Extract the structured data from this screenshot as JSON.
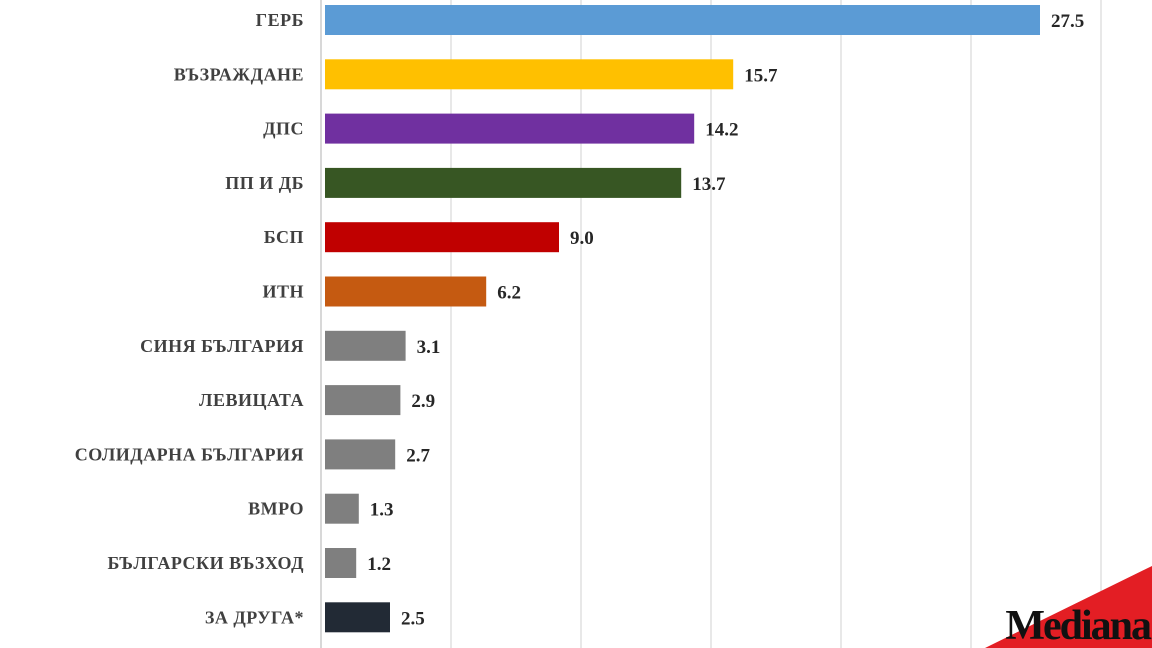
{
  "chart_data": {
    "type": "bar",
    "orientation": "horizontal",
    "title": "",
    "xlabel": "",
    "ylabel": "",
    "xlim": [
      0,
      30
    ],
    "grid": true,
    "categories": [
      "ГЕРБ",
      "ВЪЗРАЖДАНЕ",
      "ДПС",
      "ПП И ДБ",
      "БСП",
      "ИТН",
      "СИНЯ БЪЛГАРИЯ",
      "ЛЕВИЦАТА",
      "СОЛИДАРНА БЪЛГАРИЯ",
      "ВМРО",
      "БЪЛГАРСКИ ВЪЗХОД",
      "ЗА ДРУГА*"
    ],
    "values": [
      27.5,
      15.7,
      14.2,
      13.7,
      9.0,
      6.2,
      3.1,
      2.9,
      2.7,
      1.3,
      1.2,
      2.5
    ],
    "value_labels": [
      "27.5",
      "15.7",
      "14.2",
      "13.7",
      "9.0",
      "6.2",
      "3.1",
      "2.9",
      "2.7",
      "1.3",
      "1.2",
      "2.5"
    ],
    "colors": [
      "#5b9bd5",
      "#ffc000",
      "#7030a0",
      "#375623",
      "#c00000",
      "#c55a11",
      "#7f7f7f",
      "#7f7f7f",
      "#7f7f7f",
      "#7f7f7f",
      "#7f7f7f",
      "#222a35"
    ]
  },
  "logo": {
    "text": "Mediana",
    "accent_color": "#e31e24"
  }
}
